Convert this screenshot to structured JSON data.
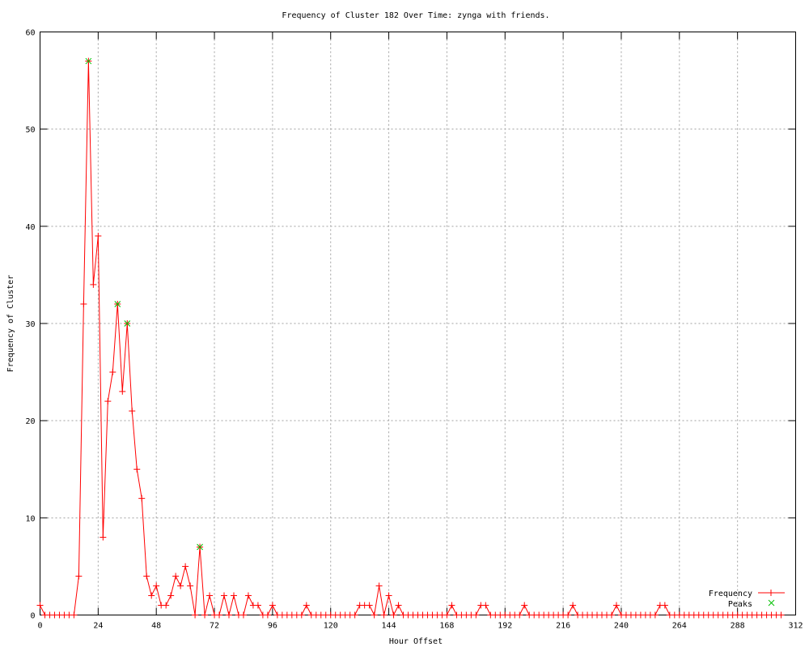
{
  "chart_data": {
    "type": "line",
    "title": "Frequency of Cluster 182 Over Time: zynga with friends.",
    "xlabel": "Hour Offset",
    "ylabel": "Frequency of Cluster",
    "xlim": [
      0,
      312
    ],
    "ylim": [
      0,
      60
    ],
    "xticks": [
      0,
      24,
      48,
      72,
      96,
      120,
      144,
      168,
      192,
      216,
      240,
      264,
      288,
      312
    ],
    "yticks": [
      0,
      10,
      20,
      30,
      40,
      50,
      60
    ],
    "grid": true,
    "legend_position": "bottom-right",
    "series": [
      {
        "name": "Frequency",
        "color": "#ff0000",
        "marker": "plus",
        "x": [
          0,
          2,
          4,
          6,
          8,
          10,
          12,
          14,
          16,
          18,
          20,
          22,
          24,
          26,
          28,
          30,
          32,
          34,
          36,
          38,
          40,
          42,
          44,
          46,
          48,
          50,
          52,
          54,
          56,
          58,
          60,
          62,
          64,
          66,
          68,
          70,
          72,
          74,
          76,
          78,
          80,
          82,
          84,
          86,
          88,
          90,
          92,
          94,
          96,
          98,
          100,
          102,
          104,
          106,
          108,
          110,
          112,
          114,
          116,
          118,
          120,
          122,
          124,
          126,
          128,
          130,
          132,
          134,
          136,
          138,
          140,
          142,
          144,
          146,
          148,
          150,
          152,
          154,
          156,
          158,
          160,
          162,
          164,
          166,
          168,
          170,
          172,
          174,
          176,
          178,
          180,
          182,
          184,
          186,
          188,
          190,
          192,
          194,
          196,
          198,
          200,
          202,
          204,
          206,
          208,
          210,
          212,
          214,
          216,
          218,
          220,
          222,
          224,
          226,
          228,
          230,
          232,
          234,
          236,
          238,
          240,
          242,
          244,
          246,
          248,
          250,
          252,
          254,
          256,
          258,
          260,
          262,
          264,
          266,
          268,
          270,
          272,
          274,
          276,
          278,
          280,
          282,
          284,
          286,
          288,
          290,
          292,
          294,
          296,
          298,
          300,
          302,
          304,
          306
        ],
        "y": [
          1,
          0,
          0,
          0,
          0,
          0,
          0,
          0,
          4,
          32,
          57,
          34,
          39,
          8,
          22,
          25,
          32,
          23,
          30,
          21,
          15,
          12,
          4,
          2,
          3,
          1,
          1,
          2,
          4,
          3,
          5,
          3,
          0,
          7,
          0,
          2,
          0,
          0,
          2,
          0,
          2,
          0,
          0,
          2,
          1,
          1,
          0,
          0,
          1,
          0,
          0,
          0,
          0,
          0,
          0,
          1,
          0,
          0,
          0,
          0,
          0,
          0,
          0,
          0,
          0,
          0,
          1,
          1,
          1,
          0,
          3,
          0,
          2,
          0,
          1,
          0,
          0,
          0,
          0,
          0,
          0,
          0,
          0,
          0,
          0,
          1,
          0,
          0,
          0,
          0,
          0,
          1,
          1,
          0,
          0,
          0,
          0,
          0,
          0,
          0,
          1,
          0,
          0,
          0,
          0,
          0,
          0,
          0,
          0,
          0,
          1,
          0,
          0,
          0,
          0,
          0,
          0,
          0,
          0,
          1,
          0,
          0,
          0,
          0,
          0,
          0,
          0,
          0,
          1,
          1,
          0,
          0,
          0,
          0,
          0,
          0,
          0,
          0,
          0,
          0,
          0,
          0,
          0,
          0,
          0,
          0,
          0,
          0,
          0,
          0,
          0,
          0,
          0,
          0
        ]
      },
      {
        "name": "Peaks",
        "color": "#00c000",
        "marker": "x",
        "x": [
          20,
          32,
          36,
          66
        ],
        "y": [
          57,
          32,
          30,
          7
        ]
      }
    ]
  }
}
